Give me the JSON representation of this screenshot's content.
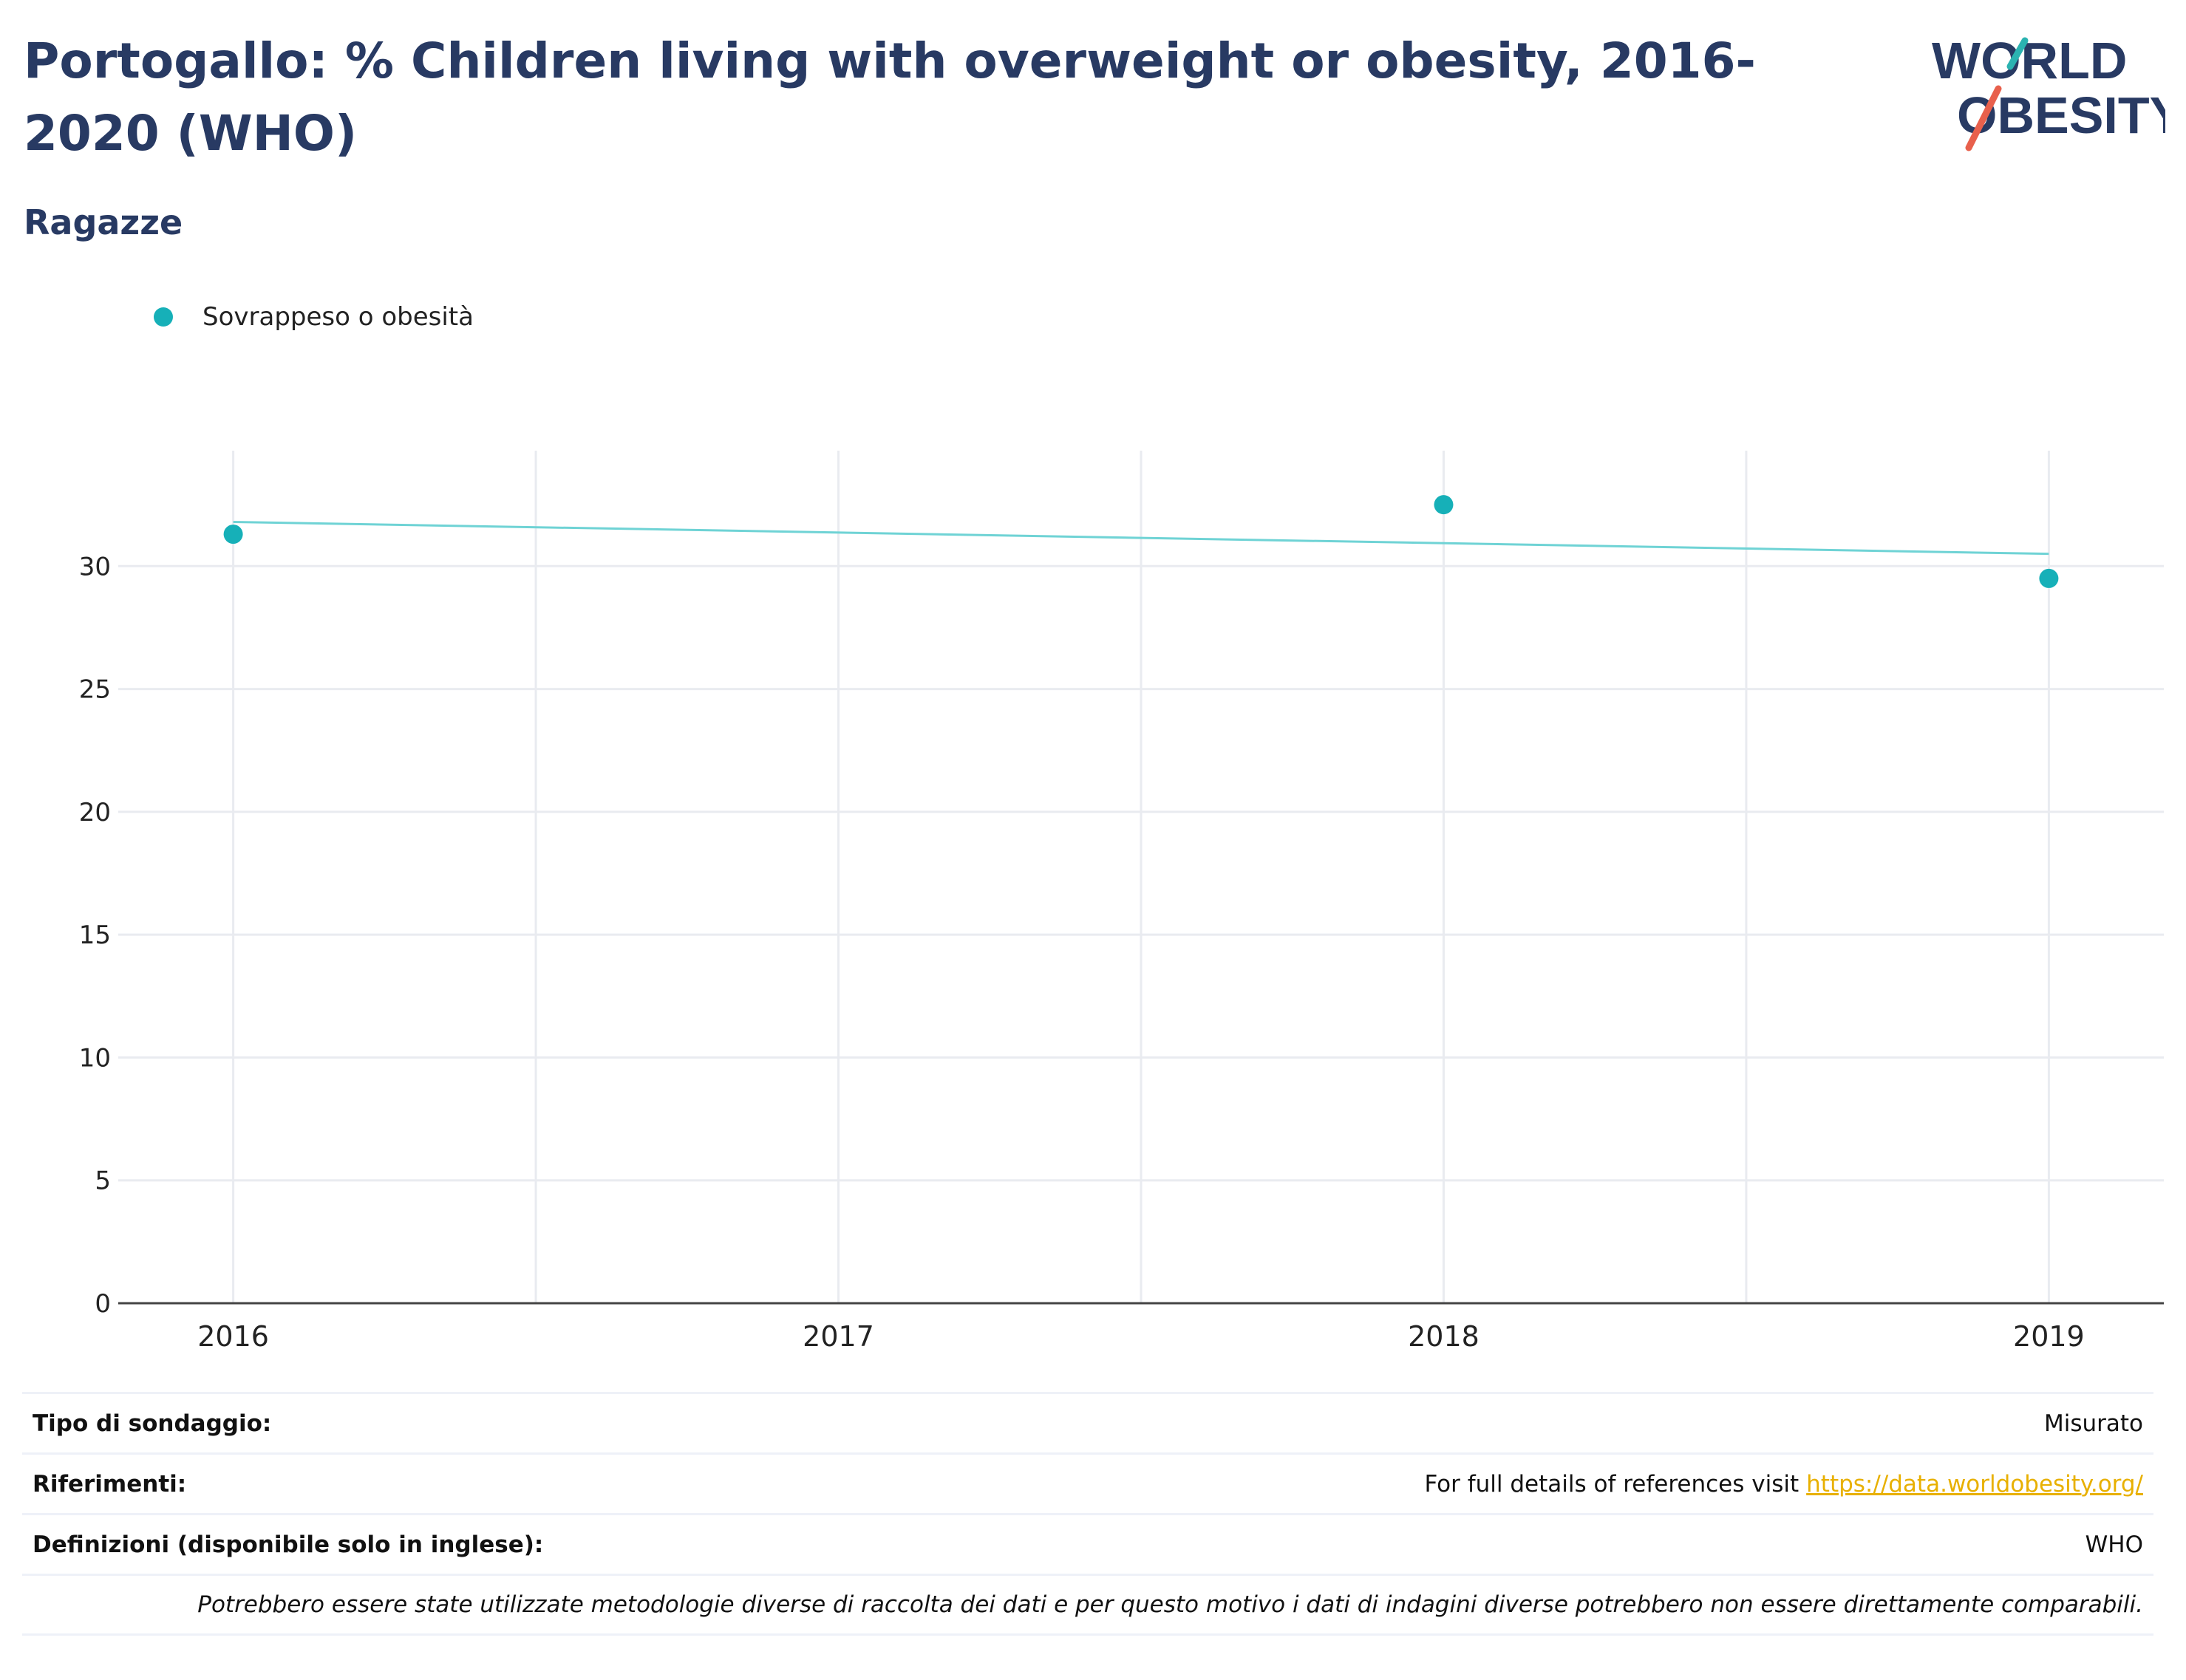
{
  "header": {
    "title": "Portogallo: % Children living with overweight or obesity, 2016-2020 (WHO)",
    "subtitle": "Ragazze"
  },
  "logo": {
    "line1": "WORLD",
    "line2": "OBESITY",
    "colors": {
      "text": "#283a63",
      "slash_top": "#2bb3b1",
      "slash_bottom": "#e8604c"
    }
  },
  "legend": {
    "label": "Sovrappeso o obesità",
    "color": "#16b0b8"
  },
  "chart_data": {
    "type": "scatter",
    "x": [
      2016,
      2018,
      2019
    ],
    "series": [
      {
        "name": "Sovrappeso o obesità",
        "values": [
          31.3,
          32.5,
          29.5
        ],
        "color": "#16b0b8"
      }
    ],
    "trendline": {
      "x": [
        2016,
        2019
      ],
      "y": [
        31.8,
        30.5
      ],
      "color": "#6fd3d5"
    },
    "x_ticks": [
      "2016",
      "2017",
      "2018",
      "2019"
    ],
    "y_ticks": [
      0,
      5,
      10,
      15,
      20,
      25,
      30
    ],
    "xlim": [
      2015.81,
      2019.19
    ],
    "ylim": [
      0,
      34.7
    ],
    "grid": true,
    "legend_position": "top-left",
    "title": "",
    "xlabel": "",
    "ylabel": ""
  },
  "info": {
    "survey_type": {
      "label": "Tipo di sondaggio:",
      "value": "Misurato"
    },
    "references": {
      "label": "Riferimenti:",
      "value": "For full details of references visit",
      "link": "https://data.worldobesity.org/"
    },
    "definitions": {
      "label": "Definizioni (disponibile solo in inglese):",
      "value": "WHO"
    },
    "note": "Potrebbero essere state utilizzate metodologie diverse di raccolta dei dati e per questo motivo i dati di indagini diverse potrebbero non essere direttamente comparabili."
  }
}
